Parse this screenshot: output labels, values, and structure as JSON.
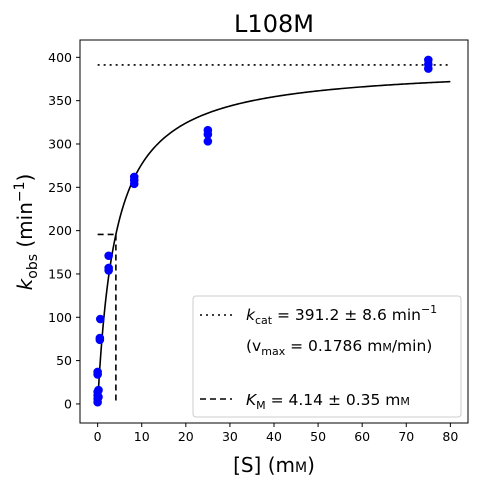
{
  "chart_data": {
    "type": "scatter",
    "title": "L108M",
    "xlabel_main": "[S] (m",
    "xlabel_unit_sc": "M",
    "xlabel_close": ")",
    "ylabel_main": "k",
    "ylabel_sub": "obs",
    "ylabel_rest": " (min",
    "ylabel_sup": "−1",
    "ylabel_close": ")",
    "xlim": [
      -4,
      84
    ],
    "ylim": [
      -22,
      420
    ],
    "xticks": [
      0,
      10,
      20,
      30,
      40,
      50,
      60,
      70,
      80
    ],
    "yticks": [
      0,
      50,
      100,
      150,
      200,
      250,
      300,
      350,
      400
    ],
    "grid": false,
    "legend_position": "lower right",
    "points": {
      "color": "#0000ff",
      "x": [
        0,
        0,
        0,
        0,
        0,
        0,
        0.2,
        0.2,
        0.5,
        0.5,
        0.6,
        2.5,
        2.5,
        2.5,
        8.3,
        8.3,
        8.3,
        25,
        25,
        25,
        75,
        75,
        75
      ],
      "y": [
        2,
        6,
        10,
        14,
        34,
        37,
        8,
        16,
        74,
        76,
        98,
        154,
        157,
        171,
        254,
        258,
        262,
        303,
        311,
        316,
        387,
        392,
        397
      ]
    },
    "fit_curve": {
      "model": "Michaelis-Menten",
      "kcat": 391.2,
      "km": 4.14,
      "x_range": [
        0,
        80
      ],
      "color": "#000000"
    },
    "kcat_line": {
      "y": 391.2,
      "x_range": [
        0,
        80
      ],
      "style": "dotted"
    },
    "km_marker": {
      "x": 4.14,
      "y": 195.6,
      "x_start": 0,
      "style": "dashed"
    },
    "legend": {
      "kcat_label": "k",
      "kcat_sub": "cat",
      "kcat_value": " = 391.2 ± 8.6 min",
      "kcat_sup": "−1",
      "vmax_open": "(v",
      "vmax_sub": "max",
      "vmax_value": " = 0.1786 m",
      "vmax_unit_sc": "M",
      "vmax_close": "/min)",
      "km_label": "K",
      "km_sub": "M",
      "km_value": " = 4.14 ± 0.35 m",
      "km_unit_sc": "M"
    }
  }
}
